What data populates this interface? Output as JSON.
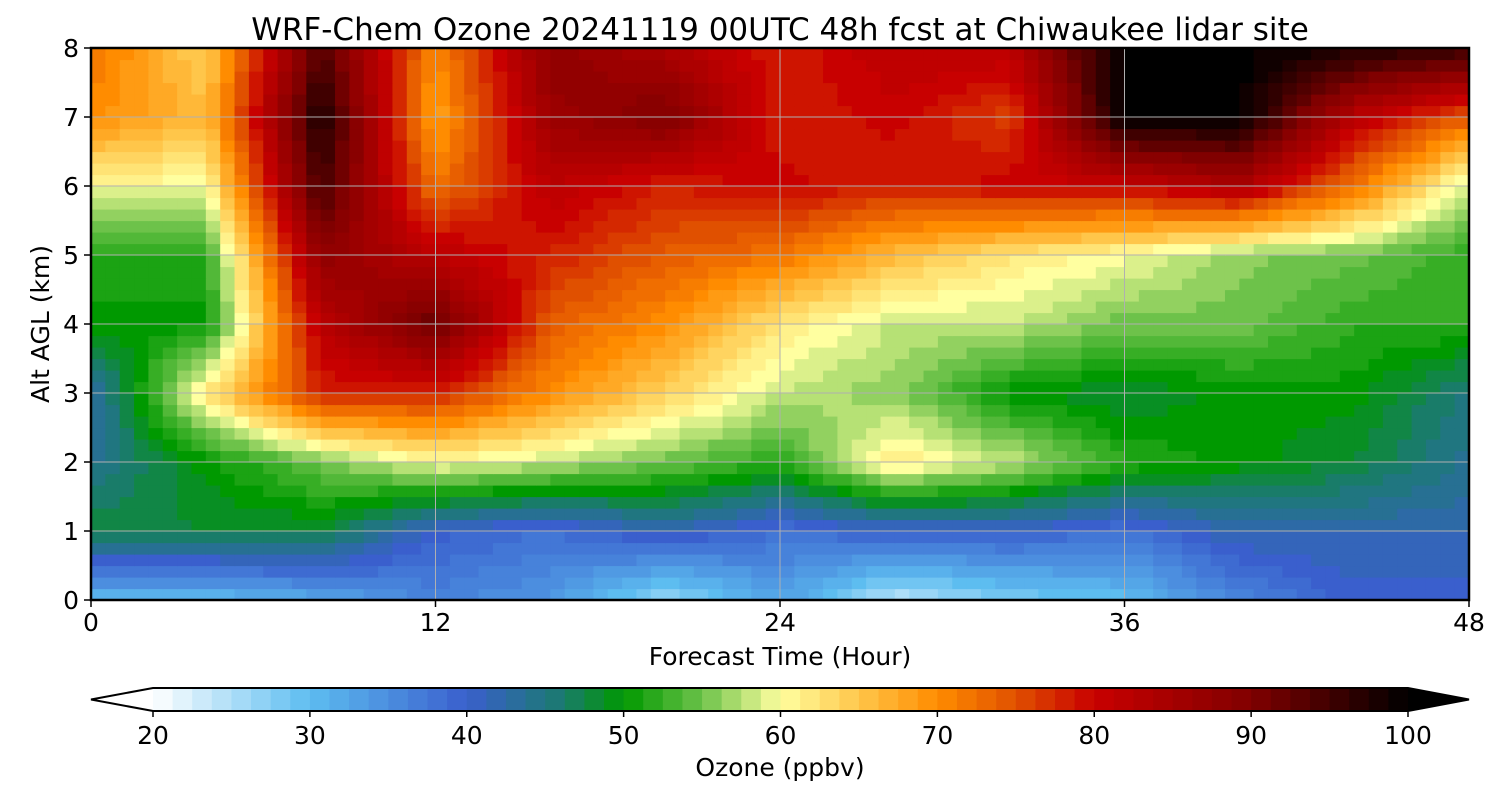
{
  "chart_data": {
    "type": "heatmap",
    "title": "WRF-Chem Ozone  20241119 00UTC 48h fcst at Chiwaukee lidar site",
    "xlabel": "Forecast Time (Hour)",
    "ylabel": "Alt AGL (km)",
    "xlim": [
      0,
      48
    ],
    "ylim": [
      0,
      8
    ],
    "x_ticks": [
      0,
      12,
      24,
      36,
      48
    ],
    "y_ticks": [
      0,
      1,
      2,
      3,
      4,
      5,
      6,
      7,
      8
    ],
    "grid": true,
    "x": [
      0,
      4,
      8,
      12,
      16,
      20,
      24,
      28,
      32,
      36,
      40,
      44,
      48
    ],
    "y": [
      0,
      1,
      2,
      3,
      4,
      5,
      6,
      7,
      8
    ],
    "z": [
      [
        30,
        30,
        32,
        36,
        34,
        26,
        33,
        24,
        28,
        30,
        36,
        40,
        40
      ],
      [
        48,
        48,
        48,
        40,
        38,
        42,
        38,
        40,
        40,
        38,
        42,
        42,
        42
      ],
      [
        44,
        50,
        55,
        60,
        58,
        55,
        52,
        62,
        58,
        52,
        50,
        48,
        44
      ],
      [
        42,
        62,
        78,
        78,
        70,
        64,
        58,
        56,
        50,
        48,
        50,
        50,
        45
      ],
      [
        50,
        50,
        82,
        92,
        74,
        70,
        62,
        58,
        58,
        55,
        55,
        52,
        52
      ],
      [
        52,
        52,
        88,
        82,
        78,
        74,
        72,
        66,
        62,
        60,
        56,
        55,
        52
      ],
      [
        60,
        60,
        95,
        72,
        82,
        78,
        80,
        78,
        80,
        80,
        84,
        72,
        58
      ],
      [
        70,
        66,
        98,
        68,
        86,
        90,
        78,
        80,
        76,
        100,
        100,
        82,
        74
      ],
      [
        72,
        64,
        94,
        70,
        88,
        84,
        78,
        82,
        82,
        100,
        100,
        98,
        96
      ]
    ],
    "colorbar": {
      "label": "Ozone  (ppbv)",
      "ticks": [
        20,
        30,
        40,
        50,
        60,
        70,
        80,
        90,
        100
      ],
      "min": 20,
      "max": 100,
      "extend": "both",
      "orientation": "horizontal",
      "placement": "bottom"
    },
    "colormap": [
      [
        20,
        "#ffffff"
      ],
      [
        30,
        "#5dbdf0"
      ],
      [
        40,
        "#3a5fcd"
      ],
      [
        46,
        "#1b7a70"
      ],
      [
        50,
        "#009900"
      ],
      [
        55,
        "#6dc24a"
      ],
      [
        60,
        "#ffffa0"
      ],
      [
        65,
        "#ffc64a"
      ],
      [
        70,
        "#ff8c00"
      ],
      [
        75,
        "#e05000"
      ],
      [
        80,
        "#c80000"
      ],
      [
        90,
        "#800000"
      ],
      [
        100,
        "#000000"
      ]
    ]
  }
}
